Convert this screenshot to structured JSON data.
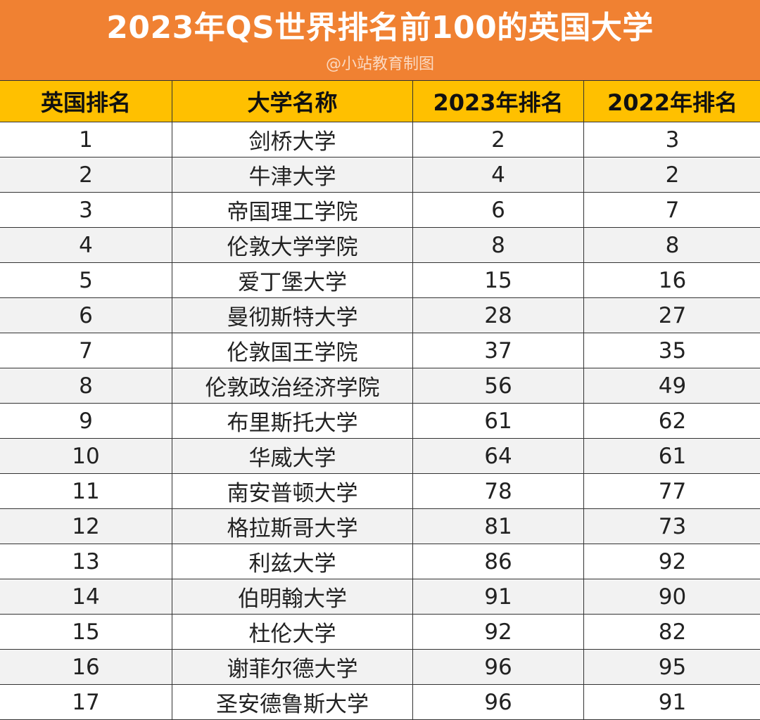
{
  "header": {
    "title": "2023年QS世界排名前100的英国大学",
    "watermark": "@小站教育制图"
  },
  "colors": {
    "title_bar": "#f08132",
    "table_header": "#ffc000",
    "row_alt": "#f2f2f2"
  },
  "table": {
    "columns": [
      "英国排名",
      "大学名称",
      "2023年排名",
      "2022年排名"
    ],
    "rows": [
      [
        "1",
        "剑桥大学",
        "2",
        "3"
      ],
      [
        "2",
        "牛津大学",
        "4",
        "2"
      ],
      [
        "3",
        "帝国理工学院",
        "6",
        "7"
      ],
      [
        "4",
        "伦敦大学学院",
        "8",
        "8"
      ],
      [
        "5",
        "爱丁堡大学",
        "15",
        "16"
      ],
      [
        "6",
        "曼彻斯特大学",
        "28",
        "27"
      ],
      [
        "7",
        "伦敦国王学院",
        "37",
        "35"
      ],
      [
        "8",
        "伦敦政治经济学院",
        "56",
        "49"
      ],
      [
        "9",
        "布里斯托大学",
        "61",
        "62"
      ],
      [
        "10",
        "华威大学",
        "64",
        "61"
      ],
      [
        "11",
        "南安普顿大学",
        "78",
        "77"
      ],
      [
        "12",
        "格拉斯哥大学",
        "81",
        "73"
      ],
      [
        "13",
        "利兹大学",
        "86",
        "92"
      ],
      [
        "14",
        "伯明翰大学",
        "91",
        "90"
      ],
      [
        "15",
        "杜伦大学",
        "92",
        "82"
      ],
      [
        "16",
        "谢菲尔德大学",
        "96",
        "95"
      ],
      [
        "17",
        "圣安德鲁斯大学",
        "96",
        "91"
      ]
    ]
  }
}
